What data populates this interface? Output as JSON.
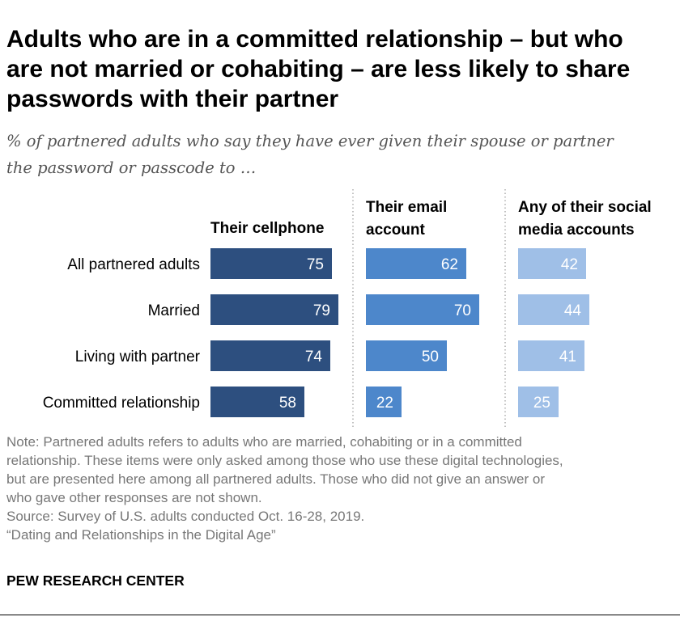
{
  "title_lines": [
    "Adults who are in a committed relationship – but who",
    "are not married or cohabiting – are less likely to share",
    "passwords with their partner"
  ],
  "subtitle_lines": [
    "% of partnered adults who say they have ever given their spouse or partner",
    "the password or passcode to …"
  ],
  "note_lines": [
    "Note: Partnered adults refers to adults who are married, cohabiting or in a committed",
    "relationship. These items were only asked among those who use these digital technologies,",
    "but are presented here among all partnered adults. Those who did not give an answer or",
    "who gave other responses are not shown.",
    "Source: Survey of U.S. adults conducted Oct. 16-28, 2019.",
    "“Dating and Relationships in the Digital Age”"
  ],
  "brand": "PEW RESEARCH CENTER",
  "colors": {
    "cellphone": "#2d4f7f",
    "email": "#4d87cb",
    "social": "#9fbfe7",
    "label_text": "#000000",
    "value_text": "#ffffff",
    "divider": "#999999"
  },
  "chart_data": {
    "type": "bar",
    "orientation": "horizontal",
    "grouping": "small-multiples",
    "categories": [
      "All partnered adults",
      "Married",
      "Living with partner",
      "Committed relationship"
    ],
    "series": [
      {
        "name": "Their cellphone",
        "header_lines": [
          "Their cellphone"
        ],
        "values": [
          75,
          79,
          74,
          58
        ]
      },
      {
        "name": "Their email account",
        "header_lines": [
          "Their email",
          "account"
        ],
        "values": [
          62,
          70,
          50,
          22
        ]
      },
      {
        "name": "Any of their social media accounts",
        "header_lines": [
          "Any of their social",
          "media accounts"
        ],
        "values": [
          42,
          44,
          41,
          25
        ]
      }
    ],
    "xlim": [
      0,
      100
    ],
    "grid": false,
    "legend": "column-headers"
  }
}
